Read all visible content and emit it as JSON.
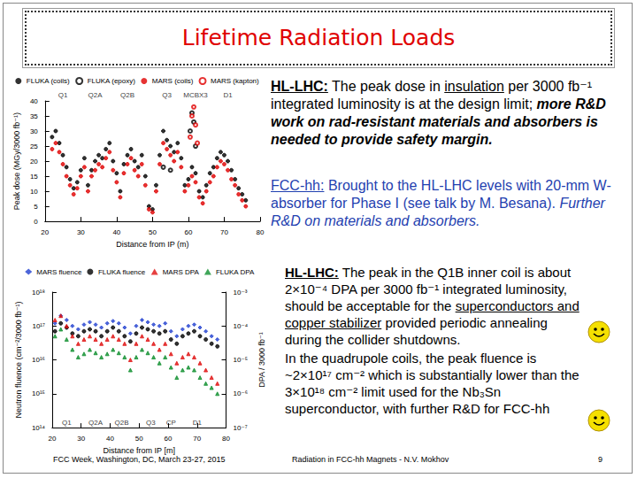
{
  "title": "Lifetime Radiation Loads",
  "paragraphs": [
    {
      "color": "#000000",
      "runs": [
        {
          "text": "HL-LHC:",
          "format": "bold-underline"
        },
        {
          "text": " The peak dose in ",
          "format": "plain"
        },
        {
          "text": "insulation",
          "format": "underline"
        },
        {
          "text": " per 3000 fb⁻¹ integrated luminosity is at the design limit; ",
          "format": "plain"
        },
        {
          "text": "more R&D work on rad-resistant materials and absorbers is needed  to provide safety margin.",
          "format": "bold-italic"
        }
      ]
    },
    {
      "color": "#1f3fb0",
      "runs": [
        {
          "text": "FCC-hh:",
          "format": "underline"
        },
        {
          "text": " Brought to the HL-LHC levels with 20-mm W-absorber for Phase I (see talk by M.  Besana). ",
          "format": "plain"
        },
        {
          "text": "Further R&D on materials and absorbers.",
          "format": "italic"
        }
      ]
    },
    {
      "color": "#000000",
      "runs": [
        {
          "text": "HL-LHC:",
          "format": "bold-underline"
        },
        {
          "text": " The peak in the Q1B inner coil is about 2×10⁻⁴ DPA per 3000 fb⁻¹ integrated luminosity, should be acceptable for the ",
          "format": "plain"
        },
        {
          "text": "superconductors and copper stabilizer",
          "format": "underline"
        },
        {
          "text": " provided periodic annealing during the collider shutdowns.",
          "format": "plain"
        }
      ]
    },
    {
      "color": "#000000",
      "runs": [
        {
          "text": "In the quadrupole coils, the peak fluence is ~2×10¹⁷ cm⁻² which is substantially lower than the 3×10¹⁸ cm⁻² limit used for the Nb₃Sn superconductor, with further R&D for FCC-hh",
          "format": "plain"
        }
      ]
    }
  ],
  "footer": {
    "left": "FCC Week, Washington, DC, March 23-27, 2015",
    "center": "Radiation in FCC-hh Magnets - N.V. Mokhov",
    "page": "9"
  },
  "chart_data": [
    {
      "type": "scatter",
      "x_label": "Distance from IP (m)",
      "y_label": "Peak dose (MGy/3000 fb⁻¹)",
      "xlim": [
        20,
        80
      ],
      "xticks": [
        20,
        30,
        40,
        50,
        60,
        70,
        80
      ],
      "ylim": [
        0,
        40
      ],
      "yticks": [
        0,
        5,
        10,
        15,
        20,
        25,
        30,
        35,
        40
      ],
      "grid": false,
      "legend": "top",
      "annotations": [
        {
          "text": "Q1",
          "x": 25
        },
        {
          "text": "Q2A",
          "x": 34
        },
        {
          "text": "Q2B",
          "x": 43
        },
        {
          "text": "Q3",
          "x": 54
        },
        {
          "text": "MCBX3",
          "x": 62
        },
        {
          "text": "D1",
          "x": 71
        }
      ],
      "series": [
        {
          "name": "FLUKA (coils)",
          "color": "#000000",
          "marker": "circle",
          "x": [
            22,
            23,
            24,
            25,
            26,
            27,
            28,
            29,
            30,
            31,
            32,
            33,
            34,
            35,
            36,
            37,
            38,
            39,
            40,
            41,
            42,
            43,
            44,
            45,
            46,
            47,
            48,
            49,
            50,
            51,
            52,
            53,
            54,
            55,
            56,
            57,
            58,
            59,
            60,
            61,
            62,
            63,
            64,
            65,
            66,
            67,
            68,
            69,
            70,
            71,
            72,
            73,
            74,
            75,
            76
          ],
          "values": [
            28,
            30,
            26,
            22,
            18,
            14,
            11,
            13,
            17,
            21,
            12,
            17,
            20,
            22,
            21,
            24,
            26,
            20,
            16,
            10,
            19,
            22,
            24,
            20,
            18,
            22,
            15,
            5,
            4,
            12,
            22,
            30,
            27,
            25,
            23,
            26,
            21,
            12,
            14,
            18,
            16,
            10,
            8,
            12,
            16,
            18,
            21,
            23,
            22,
            20,
            17,
            14,
            11,
            9,
            7
          ]
        },
        {
          "name": "FLUKA (epoxy)",
          "color": "#000000",
          "marker": "open_circle",
          "x": [
            53,
            55,
            60.5,
            61,
            61.5,
            62
          ],
          "values": [
            18,
            17,
            30,
            36,
            33,
            25
          ]
        },
        {
          "name": "MARS (coils)",
          "color": "#e00000",
          "marker": "circle",
          "x": [
            22,
            23,
            24,
            25,
            26,
            27,
            28,
            29,
            30,
            31,
            32,
            33,
            34,
            35,
            36,
            37,
            38,
            39,
            40,
            41,
            42,
            43,
            44,
            45,
            46,
            47,
            48,
            49,
            50,
            51,
            52,
            53,
            54,
            55,
            56,
            57,
            58,
            59,
            60,
            61,
            62,
            63,
            64,
            65,
            66,
            67,
            68,
            69,
            70,
            71,
            72,
            73,
            74,
            75,
            76
          ],
          "values": [
            24,
            26,
            23,
            19,
            15,
            12,
            9,
            11,
            15,
            18,
            10,
            15,
            17,
            19,
            18,
            21,
            23,
            17,
            13,
            8,
            16,
            19,
            21,
            17,
            15,
            19,
            12,
            4,
            3,
            10,
            19,
            26,
            24,
            22,
            20,
            23,
            18,
            10,
            12,
            15,
            13,
            8,
            6,
            10,
            13,
            15,
            18,
            20,
            19,
            17,
            14,
            12,
            9,
            7,
            5
          ]
        },
        {
          "name": "MARS (kapton)",
          "color": "#e00000",
          "marker": "open_circle",
          "x": [
            60.5,
            61,
            61.5,
            62,
            62.5
          ],
          "values": [
            28,
            35,
            38,
            32,
            26
          ]
        }
      ]
    },
    {
      "type": "scatter",
      "x_label": "Distance from IP [m]",
      "y_label": "Neutron fluence (cm⁻²/3000 fb⁻¹)",
      "y2_label": "DPA / 3000 fb⁻¹",
      "log": "y",
      "xlim": [
        20,
        80
      ],
      "xticks": [
        20,
        30,
        40,
        50,
        60,
        70,
        80
      ],
      "ylim": [
        100000000000000.0,
        1e+18
      ],
      "yticks": [
        {
          "value": 100000000000000.0,
          "label": "10¹⁴"
        },
        {
          "value": 1000000000000000.0,
          "label": "10¹⁵"
        },
        {
          "value": 1e+16,
          "label": "10¹⁶"
        },
        {
          "value": 1e+17,
          "label": "10¹⁷"
        },
        {
          "value": 1e+18,
          "label": "10¹⁸"
        }
      ],
      "y2lim": [
        1e-07,
        0.001
      ],
      "y2ticks": [
        {
          "value": 1e-07,
          "label": "10⁻⁷"
        },
        {
          "value": 1e-06,
          "label": "10⁻⁶"
        },
        {
          "value": 1e-05,
          "label": "10⁻⁵"
        },
        {
          "value": 0.0001,
          "label": "10⁻⁴"
        },
        {
          "value": 0.001,
          "label": "10⁻³"
        }
      ],
      "grid": false,
      "legend": "top",
      "annotations": [
        {
          "text": "Q1",
          "x": 25
        },
        {
          "text": "Q2A",
          "x": 35
        },
        {
          "text": "Q2B",
          "x": 44
        },
        {
          "text": "Q3",
          "x": 54
        },
        {
          "text": "CP",
          "x": 61
        },
        {
          "text": "D1",
          "x": 70
        }
      ],
      "series": [
        {
          "name": "MARS fluence",
          "color": "#1f3fd0",
          "marker": "diamond",
          "x": [
            21,
            23,
            25,
            27,
            29,
            31,
            33,
            35,
            37,
            39,
            41,
            43,
            45,
            47,
            49,
            51,
            53,
            55,
            57,
            59,
            61,
            63,
            65,
            67,
            69,
            71,
            73,
            75,
            77
          ],
          "values": [
            1.2e+17,
            2e+17,
            1.5e+17,
            1e+17,
            8e+16,
            1.1e+17,
            1.3e+17,
            1.1e+17,
            9e+16,
            1.2e+17,
            1.4e+17,
            1.2e+17,
            9e+16,
            6e+16,
            1e+17,
            1.5e+17,
            1.3e+17,
            1.1e+17,
            1e+17,
            1.2e+17,
            7e+16,
            5e+16,
            8e+16,
            1e+17,
            1.1e+17,
            9e+16,
            7e+16,
            5e+16,
            4e+16
          ]
        },
        {
          "name": "FLUKA fluence",
          "color": "#000000",
          "marker": "circle",
          "x": [
            21,
            23,
            25,
            27,
            29,
            31,
            33,
            35,
            37,
            39,
            41,
            43,
            45,
            47,
            49,
            51,
            53,
            55,
            57,
            59,
            61,
            63,
            65,
            67,
            69,
            71,
            73,
            75,
            77
          ],
          "values": [
            7e+16,
            1.2e+17,
            9e+16,
            6e+16,
            5e+16,
            7e+16,
            8e+16,
            7e+16,
            5e+16,
            7e+16,
            9e+16,
            7e+16,
            5e+16,
            3.5e+16,
            6e+16,
            9e+16,
            8e+16,
            7e+16,
            6e+16,
            7e+16,
            4e+16,
            3e+16,
            5e+16,
            6e+16,
            7e+16,
            5e+16,
            4e+16,
            3e+16,
            2.5e+16
          ]
        },
        {
          "name": "MARS DPA",
          "color": "#e01010",
          "marker": "triangle",
          "axis": "y2",
          "x": [
            21,
            23,
            25,
            27,
            29,
            31,
            33,
            35,
            37,
            39,
            41,
            43,
            45,
            47,
            49,
            51,
            53,
            55,
            57,
            59,
            61,
            63,
            65,
            67,
            69,
            71,
            73,
            75,
            77
          ],
          "values": [
            0.00015,
            0.0002,
            0.0001,
            5e-05,
            3e-05,
            4e-05,
            5e-05,
            4e-05,
            3e-05,
            4e-05,
            5e-05,
            4e-05,
            3e-05,
            1e-05,
            3e-05,
            5e-05,
            4e-05,
            3e-05,
            2e-05,
            3e-05,
            1.5e-05,
            8e-06,
            1.2e-05,
            1.5e-05,
            1.2e-05,
            8e-06,
            5e-06,
            3e-06,
            2e-06
          ]
        },
        {
          "name": "FLUKA DPA",
          "color": "#109030",
          "marker": "triangle",
          "axis": "y2",
          "x": [
            21,
            23,
            25,
            27,
            29,
            31,
            33,
            35,
            37,
            39,
            41,
            43,
            45,
            47,
            49,
            51,
            53,
            55,
            57,
            59,
            61,
            63,
            65,
            67,
            69,
            71,
            73,
            75,
            77
          ],
          "values": [
            5e-05,
            8e-05,
            4e-05,
            2e-05,
            1.2e-05,
            1.5e-05,
            2e-05,
            1.6e-05,
            1.2e-05,
            1.5e-05,
            2e-05,
            1.6e-05,
            1.2e-05,
            5e-06,
            1.2e-05,
            2e-05,
            1.6e-05,
            1.2e-05,
            8e-06,
            1.2e-05,
            6e-06,
            3e-06,
            5e-06,
            6e-06,
            5e-06,
            3e-06,
            2e-06,
            1.5e-06,
            1e-06
          ]
        }
      ]
    }
  ]
}
